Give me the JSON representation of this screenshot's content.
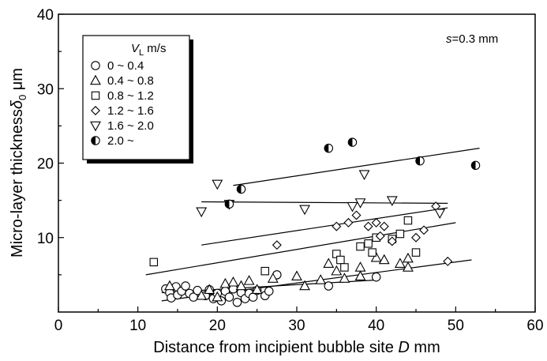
{
  "chart_data": {
    "type": "scatter",
    "xlabel": "Distance from incipient bubble site D mm",
    "xlabel_parts": {
      "text": "Distance from incipient bubble site ",
      "var": "D",
      "unit": " mm"
    },
    "ylabel": "Micro-layer thickness δ0 μm",
    "ylabel_parts": {
      "text": "Micro-layer thickness",
      "var": "δ",
      "sub": "0",
      "unit": " μm"
    },
    "xlim": [
      0,
      60
    ],
    "ylim": [
      0,
      40
    ],
    "xticks": [
      0,
      10,
      20,
      30,
      40,
      50,
      60
    ],
    "yticks": [
      10,
      20,
      30,
      40
    ],
    "ytick_labels": [
      "10",
      "20",
      "30",
      "40"
    ],
    "grid": false,
    "legend_placement": "top-left",
    "legend_title": {
      "var": "V",
      "sub": "L",
      "unit": " m/s"
    },
    "annotation": {
      "var": "s",
      "text": "=0.3 mm"
    },
    "series": [
      {
        "name": "0 ~ 0.4",
        "marker": "circle-open",
        "points": [
          [
            13.5,
            3.1
          ],
          [
            14,
            2.6
          ],
          [
            14.2,
            1.9
          ],
          [
            14.8,
            3.4
          ],
          [
            15,
            2.3
          ],
          [
            15.5,
            2.8
          ],
          [
            16,
            3.5
          ],
          [
            16.5,
            2.5
          ],
          [
            17,
            2.0
          ],
          [
            17.5,
            2.9
          ],
          [
            18.5,
            2.2
          ],
          [
            19,
            3.0
          ],
          [
            19.5,
            1.8
          ],
          [
            20,
            2.5
          ],
          [
            20.5,
            1.5
          ],
          [
            21,
            2.8
          ],
          [
            21.5,
            2.0
          ],
          [
            22,
            3.1
          ],
          [
            22.5,
            1.3
          ],
          [
            23,
            2.6
          ],
          [
            23.5,
            1.8
          ],
          [
            24,
            2.5
          ],
          [
            24.5,
            2.0
          ],
          [
            25,
            2.9
          ],
          [
            26,
            2.2
          ],
          [
            26.5,
            2.8
          ],
          [
            27.5,
            5.0
          ],
          [
            34,
            3.5
          ],
          [
            40,
            4.7
          ]
        ]
      },
      {
        "name": "0.4 ~ 0.8",
        "marker": "triangle-up-open",
        "points": [
          [
            14,
            3.5
          ],
          [
            18,
            2.2
          ],
          [
            19,
            3.0
          ],
          [
            20,
            2.0
          ],
          [
            21,
            3.8
          ],
          [
            22,
            4.0
          ],
          [
            23,
            3.5
          ],
          [
            24,
            4.2
          ],
          [
            25,
            3.0
          ],
          [
            27,
            4.5
          ],
          [
            30,
            4.8
          ],
          [
            31,
            3.5
          ],
          [
            33,
            4.3
          ],
          [
            34,
            6.5
          ],
          [
            35,
            5.5
          ],
          [
            36,
            4.5
          ],
          [
            38,
            6.0
          ],
          [
            38,
            4.8
          ],
          [
            40,
            7.3
          ],
          [
            41,
            7.0
          ],
          [
            43,
            6.5
          ],
          [
            44,
            6.0
          ],
          [
            44,
            7.2
          ]
        ]
      },
      {
        "name": "0.8 ~ 1.2",
        "marker": "square-open",
        "points": [
          [
            12,
            6.7
          ],
          [
            26,
            5.5
          ],
          [
            35,
            7.8
          ],
          [
            35.5,
            7.0
          ],
          [
            36,
            6.0
          ],
          [
            38,
            8.8
          ],
          [
            39,
            9.2
          ],
          [
            39.5,
            8.0
          ],
          [
            40,
            10.0
          ],
          [
            42,
            9.8
          ],
          [
            43,
            10.5
          ],
          [
            44,
            12.3
          ],
          [
            45,
            8.0
          ]
        ]
      },
      {
        "name": "1.2 ~ 1.6",
        "marker": "diamond-open",
        "points": [
          [
            27.5,
            9.0
          ],
          [
            35,
            11.5
          ],
          [
            36.5,
            12.0
          ],
          [
            37.5,
            13.0
          ],
          [
            39,
            11.5
          ],
          [
            40,
            12.0
          ],
          [
            40.5,
            10.2
          ],
          [
            41,
            11.5
          ],
          [
            42,
            9.5
          ],
          [
            45,
            10.0
          ],
          [
            46,
            11.0
          ],
          [
            47.5,
            14.2
          ],
          [
            49,
            6.8
          ]
        ]
      },
      {
        "name": "1.6 ~ 2.0",
        "marker": "triangle-down-open",
        "points": [
          [
            18,
            13.5
          ],
          [
            20,
            17.2
          ],
          [
            21.5,
            14.5
          ],
          [
            31,
            13.8
          ],
          [
            37,
            14.2
          ],
          [
            38,
            14.7
          ],
          [
            38.5,
            18.5
          ],
          [
            42,
            15.0
          ],
          [
            48,
            13.3
          ]
        ]
      },
      {
        "name": "2.0 ~",
        "marker": "circle-half",
        "points": [
          [
            21.5,
            14.5
          ],
          [
            23,
            16.5
          ],
          [
            34,
            22.0
          ],
          [
            37,
            22.8
          ],
          [
            45.5,
            20.3
          ],
          [
            52.5,
            19.7
          ]
        ]
      }
    ],
    "trend_lines": [
      {
        "x": [
          13,
          52
        ],
        "y": [
          1.5,
          7.0
        ]
      },
      {
        "x": [
          13,
          40
        ],
        "y": [
          2.6,
          4.3
        ]
      },
      {
        "x": [
          11,
          50
        ],
        "y": [
          5.0,
          12.0
        ]
      },
      {
        "x": [
          18,
          49
        ],
        "y": [
          9.0,
          14.0
        ]
      },
      {
        "x": [
          18,
          49
        ],
        "y": [
          14.8,
          14.6
        ]
      },
      {
        "x": [
          22,
          53
        ],
        "y": [
          17.0,
          22.0
        ]
      }
    ]
  }
}
